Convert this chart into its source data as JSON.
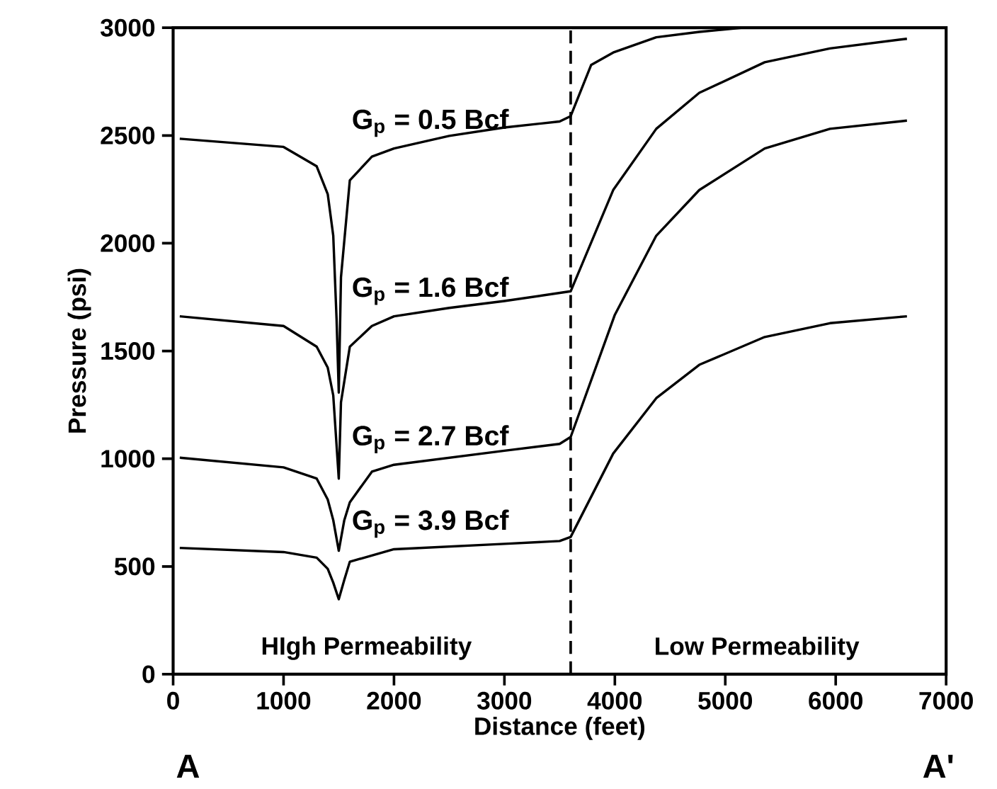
{
  "chart_data": {
    "type": "line",
    "xlabel": "Distance (feet)",
    "ylabel": "Pressure (psi)",
    "xlim": [
      0,
      7000
    ],
    "ylim": [
      0,
      3000
    ],
    "xticks": [
      0,
      1000,
      2000,
      3000,
      4000,
      5000,
      6000,
      7000
    ],
    "yticks": [
      0,
      500,
      1000,
      1500,
      2000,
      2500,
      3000
    ],
    "grid": false,
    "legend": false,
    "marker": "none",
    "line_style": "solid",
    "series": [
      {
        "name": "G$_{p}$ = 0.5 Bcf",
        "color": "#000000",
        "x": [
          60,
          1000,
          1300,
          1400,
          1450,
          1480,
          1500,
          1520,
          1600,
          1800,
          2000,
          2500,
          3000,
          3500,
          3600,
          3785,
          3985,
          4375,
          4765,
          5160,
          6000,
          7000
        ],
        "values": [
          2485,
          2447,
          2357,
          2228,
          2035,
          1648,
          1307,
          1842,
          2292,
          2402,
          2440,
          2498,
          2537,
          2565,
          2590,
          2827,
          2885,
          2956,
          2981,
          3000,
          3000,
          3000
        ]
      },
      {
        "name": "G$_{p}$ = 1.6 Bcf",
        "color": "#000000",
        "x": [
          60,
          1000,
          1300,
          1400,
          1450,
          1500,
          1520,
          1600,
          1800,
          2000,
          2500,
          3000,
          3600,
          3985,
          4375,
          4765,
          5357,
          5948,
          6645
        ],
        "values": [
          1661,
          1616,
          1520,
          1423,
          1294,
          908,
          1262,
          1520,
          1616,
          1661,
          1700,
          1732,
          1777,
          2247,
          2531,
          2698,
          2840,
          2904,
          2949
        ]
      },
      {
        "name": "G$_{p}$ = 2.7 Bcf",
        "color": "#000000",
        "x": [
          60,
          1000,
          1300,
          1400,
          1450,
          1500,
          1550,
          1600,
          1800,
          2000,
          3000,
          3500,
          3600,
          4000,
          4375,
          4765,
          5357,
          5948,
          6645
        ],
        "values": [
          1005,
          960,
          908,
          811,
          715,
          573,
          715,
          798,
          940,
          972,
          1037,
          1069,
          1101,
          1668,
          2035,
          2247,
          2440,
          2531,
          2569
        ]
      },
      {
        "name": "G$_{p}$ = 3.9 Bcf",
        "color": "#000000",
        "x": [
          60,
          1000,
          1300,
          1400,
          1450,
          1500,
          1550,
          1600,
          2000,
          3000,
          3500,
          3600,
          3985,
          4375,
          4765,
          5357,
          5948,
          6645
        ],
        "values": [
          586,
          567,
          541,
          489,
          425,
          348,
          438,
          522,
          580,
          605,
          618,
          637,
          1024,
          1281,
          1436,
          1565,
          1629,
          1661
        ]
      }
    ],
    "ref_lines": [
      {
        "axis": "x",
        "value": 3600,
        "line_style": "dashed"
      }
    ],
    "annotations": [
      "HIgh Permeability",
      "Low Permeability",
      "A",
      "A'"
    ]
  }
}
